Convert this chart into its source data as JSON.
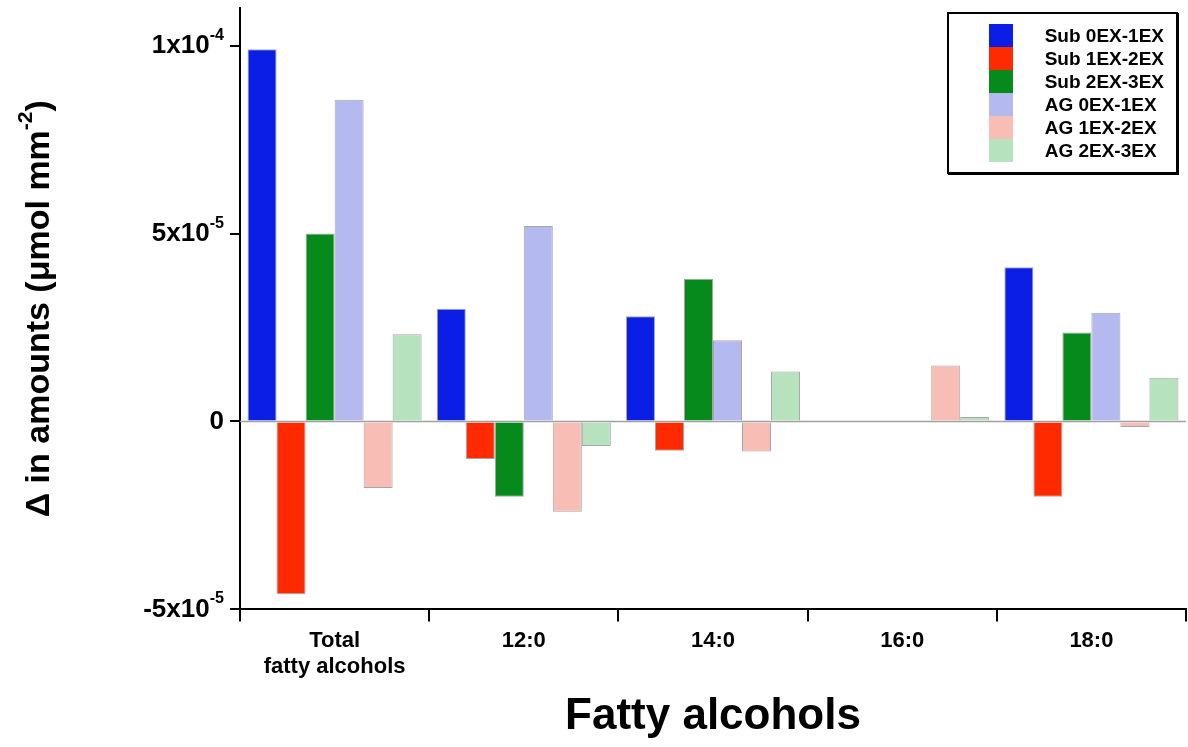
{
  "chart_data": {
    "type": "bar",
    "xlabel": "Fatty alcohols",
    "ylabel": "Δ in amounts (μmol mm$^{-2}$)",
    "categories": [
      "Total\nfatty alcohols",
      "12:0",
      "14:0",
      "16:0",
      "18:0"
    ],
    "series": [
      {
        "name": "Sub 0EX-1EX",
        "color": "#0a1ee6",
        "values": [
          9.9e-05,
          3e-05,
          2.8e-05,
          null,
          4.1e-05
        ]
      },
      {
        "name": "Sub 1EX-2EX",
        "color": "#ff2a00",
        "values": [
          -4.6e-05,
          -1e-05,
          -7.8e-06,
          null,
          -2e-05
        ]
      },
      {
        "name": "Sub 2EX-3EX",
        "color": "#078a1c",
        "values": [
          5e-05,
          -2e-05,
          3.8e-05,
          null,
          2.37e-05
        ]
      },
      {
        "name": "AG 0EX-1EX",
        "color": "#b4b9f0",
        "values": [
          8.56e-05,
          5.2e-05,
          2.16e-05,
          null,
          2.89e-05
        ]
      },
      {
        "name": "AG 1EX-2EX",
        "color": "#f8beb6",
        "values": [
          -1.77e-05,
          -2.4e-05,
          -8e-06,
          1.49e-05,
          -1.5e-06
        ]
      },
      {
        "name": "AG 2EX-3EX",
        "color": "#b6e2be",
        "values": [
          2.32e-05,
          -6.5e-06,
          1.33e-05,
          1.2e-06,
          1.16e-05
        ]
      }
    ],
    "ylim": [
      -5e-05,
      0.00011
    ],
    "yticks": [
      {
        "value": -5e-05,
        "label": "-5x10$^{-5}$"
      },
      {
        "value": 0,
        "label": "0"
      },
      {
        "value": 5e-05,
        "label": "5x10$^{-5}$"
      },
      {
        "value": 0.0001,
        "label": "1x10$^{-4}$"
      }
    ],
    "ref_lines": [
      {
        "axis": "y",
        "value": 0,
        "color": "#a0a0a0"
      }
    ],
    "grid": false,
    "legend": "top right"
  }
}
